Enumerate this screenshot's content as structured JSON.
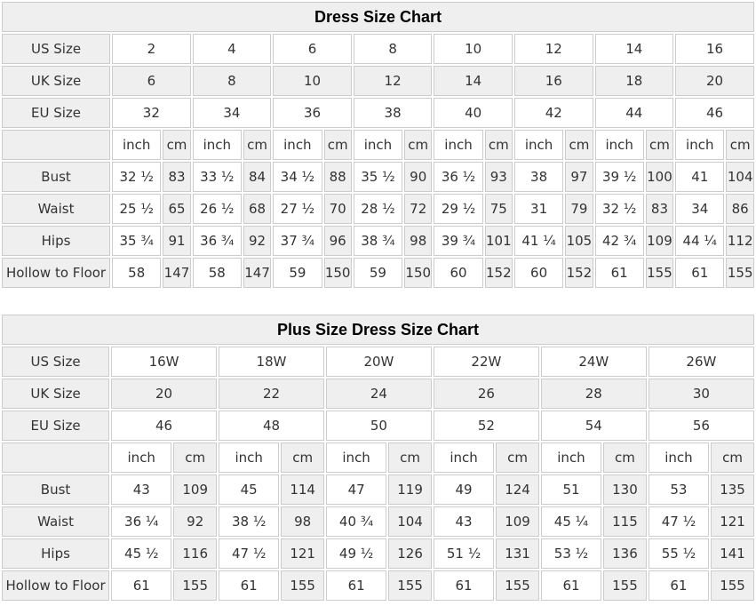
{
  "colors": {
    "shaded_cell_bg": "#efefef",
    "cell_bg": "#ffffff",
    "border": "#cccccc",
    "text": "#333333",
    "title_text": "#000000"
  },
  "chart_data": [
    {
      "type": "table",
      "title": "Dress Size Chart",
      "unit_labels": {
        "inch": "inch",
        "cm": "cm"
      },
      "size_rows": [
        {
          "label": "US Size",
          "shaded": false,
          "values": [
            "2",
            "4",
            "6",
            "8",
            "10",
            "12",
            "14",
            "16"
          ]
        },
        {
          "label": "UK Size",
          "shaded": true,
          "values": [
            "6",
            "8",
            "10",
            "12",
            "14",
            "16",
            "18",
            "20"
          ]
        },
        {
          "label": "EU Size",
          "shaded": false,
          "values": [
            "32",
            "34",
            "36",
            "38",
            "40",
            "42",
            "44",
            "46"
          ]
        }
      ],
      "measure_rows": [
        {
          "label": "Bust",
          "pairs": [
            [
              "32 ½",
              "83"
            ],
            [
              "33 ½",
              "84"
            ],
            [
              "34 ½",
              "88"
            ],
            [
              "35 ½",
              "90"
            ],
            [
              "36 ½",
              "93"
            ],
            [
              "38",
              "97"
            ],
            [
              "39 ½",
              "100"
            ],
            [
              "41",
              "104"
            ]
          ]
        },
        {
          "label": "Waist",
          "pairs": [
            [
              "25 ½",
              "65"
            ],
            [
              "26 ½",
              "68"
            ],
            [
              "27 ½",
              "70"
            ],
            [
              "28 ½",
              "72"
            ],
            [
              "29 ½",
              "75"
            ],
            [
              "31",
              "79"
            ],
            [
              "32 ½",
              "83"
            ],
            [
              "34",
              "86"
            ]
          ]
        },
        {
          "label": "Hips",
          "pairs": [
            [
              "35 ¾",
              "91"
            ],
            [
              "36 ¾",
              "92"
            ],
            [
              "37 ¾",
              "96"
            ],
            [
              "38 ¾",
              "98"
            ],
            [
              "39 ¾",
              "101"
            ],
            [
              "41 ¼",
              "105"
            ],
            [
              "42 ¾",
              "109"
            ],
            [
              "44 ¼",
              "112"
            ]
          ]
        },
        {
          "label": "Hollow to Floor",
          "pairs": [
            [
              "58",
              "147"
            ],
            [
              "58",
              "147"
            ],
            [
              "59",
              "150"
            ],
            [
              "59",
              "150"
            ],
            [
              "60",
              "152"
            ],
            [
              "60",
              "152"
            ],
            [
              "61",
              "155"
            ],
            [
              "61",
              "155"
            ]
          ]
        }
      ]
    },
    {
      "type": "table",
      "title": "Plus Size Dress Size Chart",
      "unit_labels": {
        "inch": "inch",
        "cm": "cm"
      },
      "size_rows": [
        {
          "label": "US Size",
          "shaded": false,
          "values": [
            "16W",
            "18W",
            "20W",
            "22W",
            "24W",
            "26W"
          ]
        },
        {
          "label": "UK Size",
          "shaded": true,
          "values": [
            "20",
            "22",
            "24",
            "26",
            "28",
            "30"
          ]
        },
        {
          "label": "EU Size",
          "shaded": false,
          "values": [
            "46",
            "48",
            "50",
            "52",
            "54",
            "56"
          ]
        }
      ],
      "measure_rows": [
        {
          "label": "Bust",
          "pairs": [
            [
              "43",
              "109"
            ],
            [
              "45",
              "114"
            ],
            [
              "47",
              "119"
            ],
            [
              "49",
              "124"
            ],
            [
              "51",
              "130"
            ],
            [
              "53",
              "135"
            ]
          ]
        },
        {
          "label": "Waist",
          "pairs": [
            [
              "36 ¼",
              "92"
            ],
            [
              "38 ½",
              "98"
            ],
            [
              "40 ¾",
              "104"
            ],
            [
              "43",
              "109"
            ],
            [
              "45 ¼",
              "115"
            ],
            [
              "47 ½",
              "121"
            ]
          ]
        },
        {
          "label": "Hips",
          "pairs": [
            [
              "45 ½",
              "116"
            ],
            [
              "47 ½",
              "121"
            ],
            [
              "49 ½",
              "126"
            ],
            [
              "51 ½",
              "131"
            ],
            [
              "53 ½",
              "136"
            ],
            [
              "55 ½",
              "141"
            ]
          ]
        },
        {
          "label": "Hollow to Floor",
          "pairs": [
            [
              "61",
              "155"
            ],
            [
              "61",
              "155"
            ],
            [
              "61",
              "155"
            ],
            [
              "61",
              "155"
            ],
            [
              "61",
              "155"
            ],
            [
              "61",
              "155"
            ]
          ]
        }
      ]
    }
  ]
}
